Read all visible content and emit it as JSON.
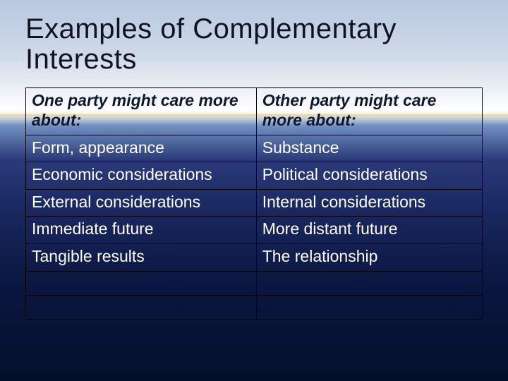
{
  "title": "Examples of Complementary Interests",
  "table": {
    "columns": [
      "One party might care more about:",
      "Other party might care more about:"
    ],
    "rows": [
      [
        "Form, appearance",
        "Substance"
      ],
      [
        "Economic considerations",
        "Political considerations"
      ],
      [
        "External considerations",
        "Internal considerations"
      ],
      [
        "Immediate future",
        "More distant future"
      ],
      [
        "Tangible results",
        "The relationship"
      ],
      [
        "",
        ""
      ],
      [
        "",
        ""
      ]
    ],
    "border_color": "#000000",
    "header_text_color": "#0e1830",
    "body_text_color": "#ffffff",
    "font_size_title": 40,
    "font_size_cell": 23
  },
  "background": {
    "sky_top": "#b8c8e0",
    "sky_light": "#d0dae8",
    "horizon": "#ffffff",
    "sea_top": "#2a3a7a",
    "sea_bottom": "#04102a"
  }
}
